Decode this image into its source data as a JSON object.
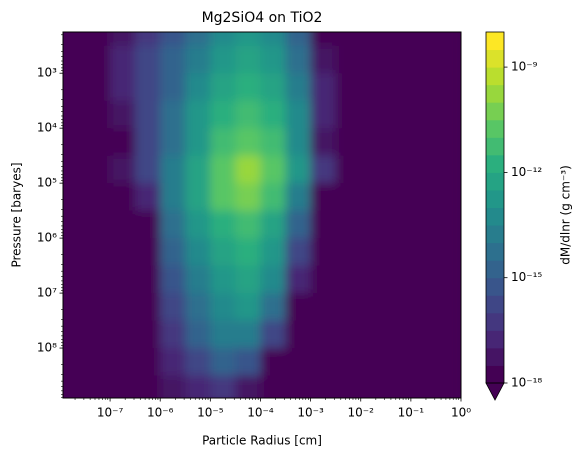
{
  "chart_data": {
    "type": "contour",
    "title": "Mg2SiO4 on TiO2",
    "x_label": "Particle Radius [cm]",
    "y_label": "Pressure [baryes]",
    "colorbar_label": "dM/dlnr (g cm⁻³)",
    "colormap": "viridis",
    "x_scale": "log",
    "y_scale": "log",
    "y_inverted": true,
    "xlim": [
      1.15e-08,
      1
    ],
    "ylim": [
      178,
      810000000
    ],
    "clim": [
      1e-18,
      1e-08
    ],
    "levels_per_decade": 2,
    "xticks": [
      {
        "value": 1e-07,
        "label": "10⁻⁷"
      },
      {
        "value": 1e-06,
        "label": "10⁻⁶"
      },
      {
        "value": 1e-05,
        "label": "10⁻⁵"
      },
      {
        "value": 0.0001,
        "label": "10⁻⁴"
      },
      {
        "value": 0.001,
        "label": "10⁻³"
      },
      {
        "value": 0.01,
        "label": "10⁻²"
      },
      {
        "value": 0.1,
        "label": "10⁻¹"
      },
      {
        "value": 1,
        "label": "10⁰"
      }
    ],
    "yticks": [
      {
        "value": 1000,
        "label": "10³"
      },
      {
        "value": 10000,
        "label": "10⁴"
      },
      {
        "value": 100000,
        "label": "10⁵"
      },
      {
        "value": 1000000,
        "label": "10⁶"
      },
      {
        "value": 10000000,
        "label": "10⁷"
      },
      {
        "value": 100000000,
        "label": "10⁸"
      }
    ],
    "cticks": [
      {
        "value": 1e-09,
        "label": "10⁻⁹"
      },
      {
        "value": 1e-12,
        "label": "10⁻¹²"
      },
      {
        "value": 1e-15,
        "label": "10⁻¹⁵"
      },
      {
        "value": 1e-18,
        "label": "10⁻¹⁸"
      }
    ],
    "x_edges": [
      1e-08,
      3.16e-08,
      1e-07,
      3.16e-07,
      1e-06,
      3.16e-06,
      1e-05,
      3.16e-05,
      0.0001,
      0.000316,
      0.001,
      0.00316,
      0.01,
      0.0316,
      0.1,
      0.316,
      1
    ],
    "y_edges": [
      100,
      316,
      1000,
      3160,
      10000,
      31600,
      100000,
      316000,
      1000000,
      3160000,
      10000000,
      31600000,
      100000000,
      316000000,
      1000000000
    ],
    "z": [
      [
        1e-20,
        1e-20,
        3.2e-18,
        3.2e-17,
        3.2e-16,
        3.2e-15,
        3.2e-14,
        1e-13,
        3.2e-14,
        1e-15,
        1e-20,
        1e-20,
        1e-20,
        1e-20,
        1e-20,
        1e-20
      ],
      [
        1e-20,
        1e-20,
        1e-17,
        1e-16,
        1e-15,
        1e-14,
        1e-13,
        3.2e-13,
        1e-13,
        3.2e-15,
        3.2e-18,
        1e-20,
        1e-20,
        1e-20,
        1e-20,
        1e-20
      ],
      [
        1e-20,
        1e-20,
        1e-17,
        1e-16,
        1e-15,
        3.2e-14,
        3.2e-13,
        1e-12,
        3.2e-13,
        1e-14,
        1e-17,
        1e-20,
        1e-20,
        1e-20,
        1e-20,
        1e-20
      ],
      [
        1e-20,
        1e-20,
        3.2e-18,
        1e-16,
        3.2e-15,
        1e-13,
        1e-12,
        3.2e-12,
        1e-12,
        3.2e-14,
        1e-17,
        1e-20,
        1e-20,
        1e-20,
        1e-20,
        1e-20
      ],
      [
        1e-20,
        1e-20,
        1e-18,
        1e-16,
        3.2e-15,
        1e-13,
        3.2e-12,
        1e-11,
        3.2e-12,
        3.2e-14,
        3.2e-18,
        1e-20,
        1e-20,
        1e-20,
        1e-20,
        1e-20
      ],
      [
        1e-20,
        1e-20,
        3.2e-18,
        1e-16,
        1e-14,
        3.2e-13,
        1e-11,
        1e-10,
        1e-11,
        1e-13,
        3.2e-17,
        1e-20,
        1e-20,
        1e-20,
        1e-20,
        1e-20
      ],
      [
        1e-20,
        1e-20,
        1e-20,
        1e-17,
        1e-14,
        3.2e-13,
        1e-11,
        3.2e-11,
        3.2e-12,
        1e-14,
        1e-20,
        1e-20,
        1e-20,
        1e-20,
        1e-20,
        1e-20
      ],
      [
        1e-20,
        1e-20,
        1e-20,
        1e-20,
        3.2e-15,
        1e-13,
        1e-12,
        3.2e-12,
        3.2e-13,
        1e-15,
        1e-20,
        1e-20,
        1e-20,
        1e-20,
        1e-20,
        1e-20
      ],
      [
        1e-20,
        1e-20,
        1e-20,
        1e-20,
        1e-15,
        3.2e-14,
        3.2e-13,
        1e-12,
        1e-13,
        1e-16,
        1e-20,
        1e-20,
        1e-20,
        1e-20,
        1e-20,
        1e-20
      ],
      [
        1e-20,
        1e-20,
        1e-20,
        1e-20,
        3.2e-16,
        1e-14,
        1e-13,
        3.2e-13,
        3.2e-14,
        1e-17,
        1e-20,
        1e-20,
        1e-20,
        1e-20,
        1e-20,
        1e-20
      ],
      [
        1e-20,
        1e-20,
        1e-20,
        1e-20,
        1e-16,
        3.2e-15,
        3.2e-14,
        1e-13,
        3.2e-15,
        1e-20,
        1e-20,
        1e-20,
        1e-20,
        1e-20,
        1e-20,
        1e-20
      ],
      [
        1e-20,
        1e-20,
        1e-20,
        1e-20,
        3.2e-17,
        1e-15,
        1e-14,
        1e-14,
        1e-16,
        1e-20,
        1e-20,
        1e-20,
        1e-20,
        1e-20,
        1e-20,
        1e-20
      ],
      [
        1e-20,
        1e-20,
        1e-20,
        1e-20,
        1e-17,
        1e-16,
        1e-15,
        3.2e-16,
        1e-20,
        1e-20,
        1e-20,
        1e-20,
        1e-20,
        1e-20,
        1e-20,
        1e-20
      ],
      [
        1e-20,
        1e-20,
        1e-20,
        1e-20,
        3.2e-18,
        1e-17,
        3.2e-17,
        3.2e-18,
        1e-20,
        1e-20,
        1e-20,
        1e-20,
        1e-20,
        1e-20,
        1e-20,
        1e-20
      ]
    ]
  }
}
